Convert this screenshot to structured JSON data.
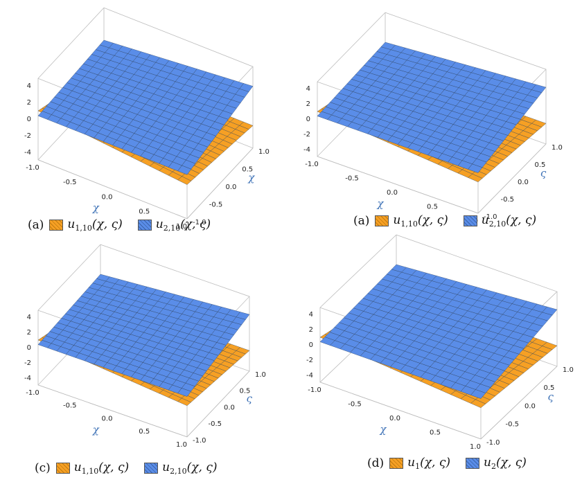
{
  "colors": {
    "orange": "#f6a024",
    "blue": "#5a8de8",
    "mesh": "#2a3f5a",
    "box": "#bdbdbd"
  },
  "icons": {
    "legend_orange": "orange-hatched-swatch-icon",
    "legend_blue": "blue-hatched-swatch-icon"
  },
  "chart_data": [
    {
      "type": "surface3d",
      "panel": "(a)",
      "x_label": "χ",
      "y_label": "χ",
      "x_ticks": [
        "-1.0",
        "-0.5",
        "0.0",
        "0.5",
        "1.0"
      ],
      "y_ticks": [
        "-1.0",
        "-0.5",
        "0.0",
        "0.5",
        "1.0"
      ],
      "z_ticks": [
        "4",
        "2",
        "0",
        "-2",
        "-4"
      ],
      "xlim": [
        -1,
        1
      ],
      "ylim": [
        -1,
        1
      ],
      "zlim": [
        -4,
        4
      ],
      "legend": [
        {
          "label_pre": "u",
          "label_sub": "1,10",
          "label_post": "(χ, ς)"
        },
        {
          "label_pre": "u",
          "label_sub": "2,10",
          "label_post": "(χ, ς)"
        }
      ]
    },
    {
      "type": "surface3d",
      "panel": "(a)",
      "x_label": "χ",
      "y_label": "ς",
      "x_ticks": [
        "-1.0",
        "-0.5",
        "0.0",
        "0.5",
        "1.0"
      ],
      "y_ticks": [
        "-1.0",
        "-0.5",
        "0.0",
        "0.5",
        "1.0"
      ],
      "z_ticks": [
        "4",
        "2",
        "0",
        "-2",
        "-4"
      ],
      "xlim": [
        -1,
        1
      ],
      "ylim": [
        -1,
        1
      ],
      "zlim": [
        -4,
        4
      ],
      "legend": [
        {
          "label_pre": "u",
          "label_sub": "1,10",
          "label_post": "(χ, ς)"
        },
        {
          "label_pre": "u",
          "label_sub": "2,10",
          "label_post": "(χ, ς)"
        }
      ]
    },
    {
      "type": "surface3d",
      "panel": "(c)",
      "x_label": "χ",
      "y_label": "ς",
      "x_ticks": [
        "-1.0",
        "-0.5",
        "0.0",
        "0.5",
        "1.0"
      ],
      "y_ticks": [
        "-1.0",
        "-0.5",
        "0.0",
        "0.5",
        "1.0"
      ],
      "z_ticks": [
        "4",
        "2",
        "0",
        "-2",
        "-4"
      ],
      "xlim": [
        -1,
        1
      ],
      "ylim": [
        -1,
        1
      ],
      "zlim": [
        -4,
        4
      ],
      "legend": [
        {
          "label_pre": "u",
          "label_sub": "1,10",
          "label_post": "(χ, ς)"
        },
        {
          "label_pre": "u",
          "label_sub": "2,10",
          "label_post": "(χ, ς)"
        }
      ]
    },
    {
      "type": "surface3d",
      "panel": "(d)",
      "x_label": "χ",
      "y_label": "ς",
      "x_ticks": [
        "-1.0",
        "-0.5",
        "0.0",
        "0.5",
        "1.0"
      ],
      "y_ticks": [
        "-1.0",
        "-0.5",
        "0.0",
        "0.5",
        "1.0"
      ],
      "z_ticks": [
        "4",
        "2",
        "0",
        "-2",
        "-4"
      ],
      "xlim": [
        -1,
        1
      ],
      "ylim": [
        -1,
        1
      ],
      "zlim": [
        -4,
        4
      ],
      "legend": [
        {
          "label_pre": "u",
          "label_sub": "1",
          "label_post": "(χ, ς)"
        },
        {
          "label_pre": "u",
          "label_sub": "2",
          "label_post": "(χ, ς)"
        }
      ]
    }
  ]
}
